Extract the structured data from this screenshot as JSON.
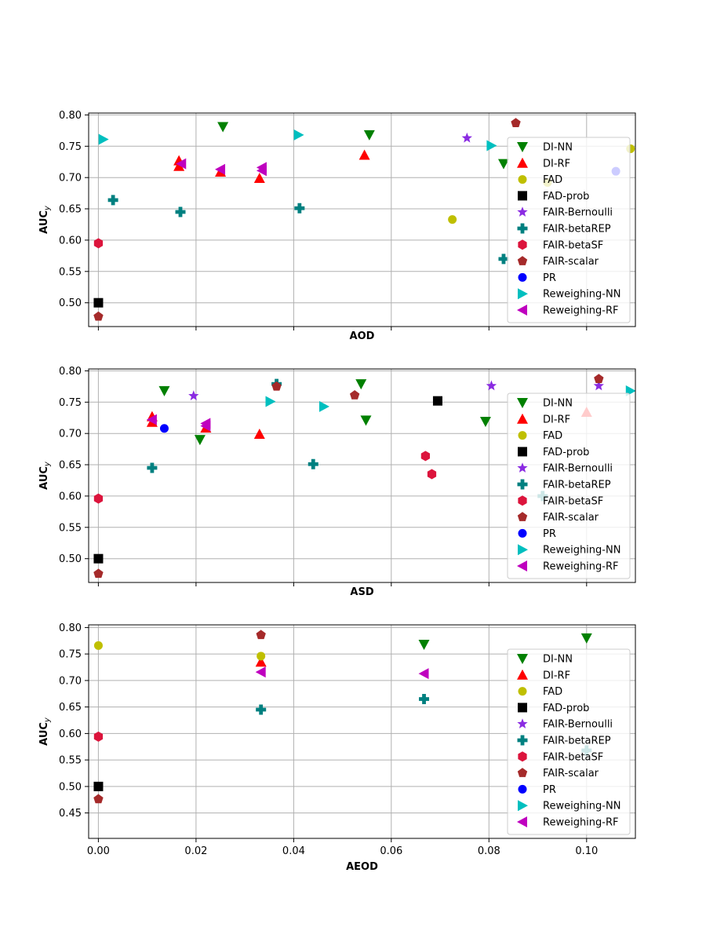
{
  "chart_data": [
    {
      "type": "scatter",
      "title": "",
      "xlabel": "AOD",
      "ylabel": "AUC_y",
      "xlim": [
        -0.002,
        0.11
      ],
      "ylim": [
        0.462,
        0.803
      ],
      "xticks": [
        0.0,
        0.02,
        0.04,
        0.06,
        0.08,
        0.1
      ],
      "show_xtick_labels": false,
      "yticks": [
        0.5,
        0.55,
        0.6,
        0.65,
        0.7,
        0.75,
        0.8
      ],
      "ytick_labels": [
        "0.50",
        "0.55",
        "0.60",
        "0.65",
        "0.70",
        "0.75",
        "0.80"
      ],
      "grid": true,
      "legend_position": "right",
      "series": [
        {
          "name": "DI-NN",
          "points": [
            [
              0.0255,
              0.781
            ],
            [
              0.0555,
              0.768
            ],
            [
              0.083,
              0.722
            ]
          ]
        },
        {
          "name": "DI-RF",
          "points": [
            [
              0.0165,
              0.718
            ],
            [
              0.0165,
              0.727
            ],
            [
              0.025,
              0.709
            ],
            [
              0.033,
              0.699
            ],
            [
              0.0545,
              0.736
            ]
          ]
        },
        {
          "name": "FAD",
          "points": [
            [
              0.0725,
              0.633
            ],
            [
              0.092,
              0.692
            ],
            [
              0.109,
              0.746
            ]
          ]
        },
        {
          "name": "FAD-prob",
          "points": [
            [
              0.0,
              0.5
            ]
          ]
        },
        {
          "name": "FAIR-Bernoulli",
          "points": [
            [
              0.0755,
              0.763
            ]
          ]
        },
        {
          "name": "FAIR-betaREP",
          "points": [
            [
              0.003,
              0.664
            ],
            [
              0.0168,
              0.645
            ],
            [
              0.0412,
              0.651
            ],
            [
              0.083,
              0.57
            ]
          ]
        },
        {
          "name": "FAIR-betaSF",
          "points": [
            [
              0.0,
              0.595
            ]
          ]
        },
        {
          "name": "FAIR-scalar",
          "points": [
            [
              0.0,
              0.478
            ],
            [
              0.0855,
              0.787
            ]
          ]
        },
        {
          "name": "PR",
          "points": [
            [
              0.106,
              0.71
            ]
          ]
        },
        {
          "name": "Reweighing-NN",
          "points": [
            [
              0.001,
              0.761
            ],
            [
              0.041,
              0.768
            ],
            [
              0.0805,
              0.751
            ]
          ]
        },
        {
          "name": "Reweighing-RF",
          "points": [
            [
              0.017,
              0.722
            ],
            [
              0.025,
              0.713
            ],
            [
              0.0335,
              0.711
            ],
            [
              0.0335,
              0.716
            ]
          ]
        }
      ]
    },
    {
      "type": "scatter",
      "title": "",
      "xlabel": "ASD",
      "ylabel": "AUC_y",
      "xlim": [
        -0.002,
        0.11
      ],
      "ylim": [
        0.462,
        0.803
      ],
      "xticks": [
        0.0,
        0.02,
        0.04,
        0.06,
        0.08,
        0.1
      ],
      "show_xtick_labels": false,
      "yticks": [
        0.5,
        0.55,
        0.6,
        0.65,
        0.7,
        0.75,
        0.8
      ],
      "ytick_labels": [
        "0.50",
        "0.55",
        "0.60",
        "0.65",
        "0.70",
        "0.75",
        "0.80"
      ],
      "grid": true,
      "legend_position": "right",
      "series": [
        {
          "name": "DI-NN",
          "points": [
            [
              0.0135,
              0.768
            ],
            [
              0.0208,
              0.69
            ],
            [
              0.0538,
              0.779
            ],
            [
              0.0548,
              0.721
            ],
            [
              0.0793,
              0.719
            ]
          ]
        },
        {
          "name": "DI-RF",
          "points": [
            [
              0.011,
              0.718
            ],
            [
              0.011,
              0.727
            ],
            [
              0.022,
              0.709
            ],
            [
              0.033,
              0.699
            ],
            [
              0.1,
              0.734
            ]
          ]
        },
        {
          "name": "FAD",
          "points": []
        },
        {
          "name": "FAD-prob",
          "points": [
            [
              0.0,
              0.5
            ],
            [
              0.0695,
              0.752
            ]
          ]
        },
        {
          "name": "FAIR-Bernoulli",
          "points": [
            [
              0.0195,
              0.76
            ],
            [
              0.0805,
              0.776
            ],
            [
              0.1025,
              0.776
            ]
          ]
        },
        {
          "name": "FAIR-betaREP",
          "points": [
            [
              0.011,
              0.645
            ],
            [
              0.0365,
              0.779
            ],
            [
              0.044,
              0.651
            ],
            [
              0.091,
              0.6
            ]
          ]
        },
        {
          "name": "FAIR-betaSF",
          "points": [
            [
              0.0,
              0.596
            ],
            [
              0.067,
              0.664
            ],
            [
              0.0683,
              0.635
            ]
          ]
        },
        {
          "name": "FAIR-scalar",
          "points": [
            [
              0.0,
              0.476
            ],
            [
              0.0365,
              0.775
            ],
            [
              0.0525,
              0.761
            ],
            [
              0.1025,
              0.787
            ]
          ]
        },
        {
          "name": "PR",
          "points": [
            [
              0.0135,
              0.708
            ]
          ]
        },
        {
          "name": "Reweighing-NN",
          "points": [
            [
              0.0352,
              0.751
            ],
            [
              0.0462,
              0.743
            ],
            [
              0.109,
              0.768
            ]
          ]
        },
        {
          "name": "Reweighing-RF",
          "points": [
            [
              0.011,
              0.722
            ],
            [
              0.022,
              0.712
            ],
            [
              0.022,
              0.716
            ]
          ]
        }
      ]
    },
    {
      "type": "scatter",
      "title": "",
      "xlabel": "AEOD",
      "ylabel": "AUC_y",
      "xlim": [
        -0.002,
        0.11
      ],
      "ylim": [
        0.402,
        0.805
      ],
      "xticks": [
        0.0,
        0.02,
        0.04,
        0.06,
        0.08,
        0.1
      ],
      "show_xtick_labels": true,
      "xtick_labels": [
        "0.00",
        "0.02",
        "0.04",
        "0.06",
        "0.08",
        "0.10"
      ],
      "yticks": [
        0.45,
        0.5,
        0.55,
        0.6,
        0.65,
        0.7,
        0.75,
        0.8
      ],
      "ytick_labels": [
        "0.45",
        "0.50",
        "0.55",
        "0.60",
        "0.65",
        "0.70",
        "0.75",
        "0.80"
      ],
      "grid": true,
      "legend_position": "right",
      "series": [
        {
          "name": "DI-NN",
          "points": [
            [
              0.0667,
              0.768
            ],
            [
              0.1,
              0.78
            ]
          ]
        },
        {
          "name": "DI-RF",
          "points": [
            [
              0.0333,
              0.735
            ]
          ]
        },
        {
          "name": "FAD",
          "points": [
            [
              0.0,
              0.766
            ],
            [
              0.0333,
              0.746
            ]
          ]
        },
        {
          "name": "FAD-prob",
          "points": [
            [
              0.0,
              0.5
            ]
          ]
        },
        {
          "name": "FAIR-Bernoulli",
          "points": []
        },
        {
          "name": "FAIR-betaREP",
          "points": [
            [
              0.0333,
              0.645
            ],
            [
              0.0667,
              0.665
            ],
            [
              0.1,
              0.568
            ]
          ]
        },
        {
          "name": "FAIR-betaSF",
          "points": [
            [
              0.0,
              0.594
            ]
          ]
        },
        {
          "name": "FAIR-scalar",
          "points": [
            [
              0.0,
              0.476
            ],
            [
              0.0333,
              0.786
            ]
          ]
        },
        {
          "name": "PR",
          "points": []
        },
        {
          "name": "Reweighing-NN",
          "points": []
        },
        {
          "name": "Reweighing-RF",
          "points": [
            [
              0.0333,
              0.716
            ],
            [
              0.0667,
              0.713
            ]
          ]
        }
      ]
    }
  ],
  "legend": {
    "entries": [
      {
        "name": "DI-NN",
        "marker": "triangle-down",
        "color": "#008000"
      },
      {
        "name": "DI-RF",
        "marker": "triangle-up",
        "color": "#ff0000"
      },
      {
        "name": "FAD",
        "marker": "circle",
        "color": "#bfbf00"
      },
      {
        "name": "FAD-prob",
        "marker": "square",
        "color": "#000000"
      },
      {
        "name": "FAIR-Bernoulli",
        "marker": "star",
        "color": "#8a2be2"
      },
      {
        "name": "FAIR-betaREP",
        "marker": "plus",
        "color": "#008080"
      },
      {
        "name": "FAIR-betaSF",
        "marker": "hexagon",
        "color": "#dc143c"
      },
      {
        "name": "FAIR-scalar",
        "marker": "pentagon",
        "color": "#a52a2a"
      },
      {
        "name": "PR",
        "marker": "circle",
        "color": "#0000ff"
      },
      {
        "name": "Reweighing-NN",
        "marker": "triangle-right",
        "color": "#00bfbf"
      },
      {
        "name": "Reweighing-RF",
        "marker": "triangle-left",
        "color": "#bf00bf"
      }
    ]
  }
}
